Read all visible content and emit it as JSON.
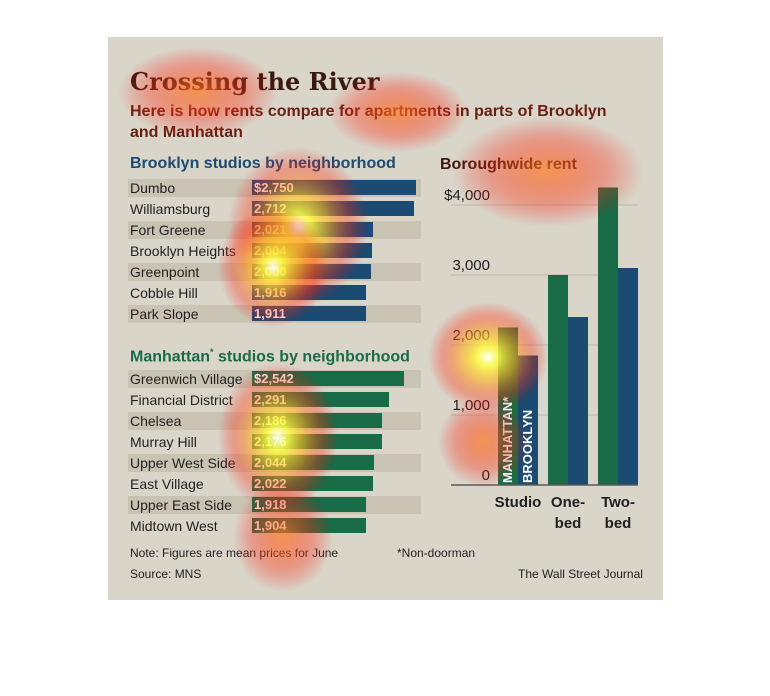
{
  "title": "Crossing the River",
  "subtitle": "Here is how rents compare for apartments in parts of Brooklyn and Manhattan",
  "brooklyn": {
    "heading": "Brooklyn studios by neighborhood",
    "rows": [
      {
        "name": "Dumbo",
        "label": "$2,750",
        "value": 2750
      },
      {
        "name": "Williamsburg",
        "label": "2,712",
        "value": 2712
      },
      {
        "name": "Fort Greene",
        "label": "2,021",
        "value": 2021
      },
      {
        "name": "Brooklyn Heights",
        "label": "2,004",
        "value": 2004
      },
      {
        "name": "Greenpoint",
        "label": "2,000",
        "value": 2000
      },
      {
        "name": "Cobble Hill",
        "label": "1,916",
        "value": 1916
      },
      {
        "name": "Park Slope",
        "label": "1,911",
        "value": 1911
      }
    ]
  },
  "manhattan": {
    "heading": "Manhattan",
    "heading_mark": "*",
    "heading_rest": " studios by neighborhood",
    "rows": [
      {
        "name": "Greenwich Village",
        "label": "$2,542",
        "value": 2542
      },
      {
        "name": "Financial District",
        "label": "2,291",
        "value": 2291
      },
      {
        "name": "Chelsea",
        "label": "2,186",
        "value": 2186
      },
      {
        "name": "Murray Hill",
        "label": "2,176",
        "value": 2176
      },
      {
        "name": "Upper West Side",
        "label": "2,044",
        "value": 2044
      },
      {
        "name": "East Village",
        "label": "2,022",
        "value": 2022
      },
      {
        "name": "Upper East Side",
        "label": "1,918",
        "value": 1918
      },
      {
        "name": "Midtown West",
        "label": "1,904",
        "value": 1904
      }
    ]
  },
  "notes": {
    "note": "Note: Figures are mean prices for June",
    "footnote": "*Non-doorman",
    "source": "Source: MNS",
    "credit": "The Wall Street Journal"
  },
  "colors": {
    "brooklyn": "#1b4a72",
    "manhattan": "#1a6b47",
    "title": "#3a1a10",
    "subtitle": "#6b1e10"
  },
  "chart_data": {
    "type": "bar",
    "title": "Boroughwide rent",
    "categories": [
      "Studio",
      "One-bed",
      "Two-bed"
    ],
    "category_lines": [
      [
        "Studio"
      ],
      [
        "One-",
        "bed"
      ],
      [
        "Two-",
        "bed"
      ]
    ],
    "series": [
      {
        "name": "MANHATTAN*",
        "values": [
          2250,
          3000,
          4250
        ]
      },
      {
        "name": "BROOKLYN",
        "values": [
          1850,
          2400,
          3100
        ]
      }
    ],
    "yticks": [
      "0",
      "1,000",
      "2,000",
      "3,000",
      "$4,000"
    ],
    "ytick_values": [
      0,
      1000,
      2000,
      3000,
      4000
    ],
    "ylim": [
      0,
      4300
    ],
    "grid": true
  }
}
